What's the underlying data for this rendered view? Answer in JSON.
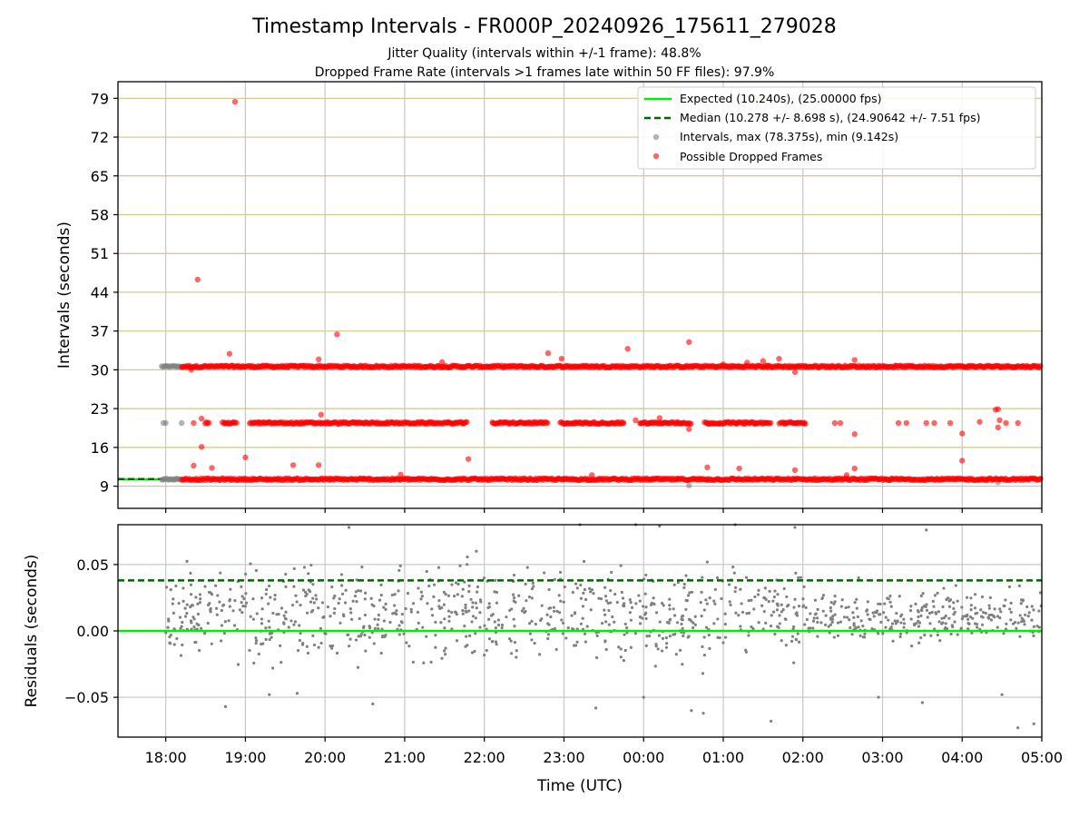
{
  "title": "Timestamp Intervals - FR000P_20240926_175611_279028",
  "subtitles": [
    "Jitter Quality (intervals within +/-1 frame): 48.8%",
    "Dropped Frame Rate (intervals >1 frames late within 50 FF files): 97.9%"
  ],
  "colors": {
    "expected": "#00ee00",
    "median": "#006400",
    "intervals": "#808080",
    "dropped": "#ff0000",
    "gridline_top": "#d4c58a",
    "gridline_vertical": "#c8c8c8"
  },
  "chart_data": [
    {
      "type": "scatter",
      "panel": "intervals",
      "xlabel": "Time (UTC)",
      "ylabel": "Intervals (seconds)",
      "xlim_hours": [
        17.4,
        29.0
      ],
      "ylim": [
        5,
        82
      ],
      "yticks": [
        9,
        16,
        23,
        30,
        37,
        44,
        51,
        58,
        65,
        72,
        79
      ],
      "ytick_labels": [
        "9",
        "16",
        "23",
        "30",
        "37",
        "44",
        "51",
        "58",
        "65",
        "72",
        "79"
      ],
      "grid": true,
      "legend_placement": "upper right",
      "legend": [
        "Expected (10.240s), (25.00000 fps)",
        "Median (10.278 +/- 8.698 s), (24.90642 +/- 7.51 fps)",
        "Intervals, max (78.375s), min (9.142s)",
        "Possible Dropped Frames"
      ],
      "series": [
        {
          "name": "Expected (10.240s), (25.00000 fps)",
          "kind": "hline",
          "value": 10.24,
          "xrange_hours": [
            17.4,
            18.0
          ]
        },
        {
          "name": "Median (10.278 +/- 8.698 s), (24.90642 +/- 7.51 fps)",
          "kind": "hline",
          "value": 10.278,
          "xrange_hours": [
            17.4,
            18.0
          ]
        },
        {
          "name": "Intervals, max (78.375s), min (9.142s)",
          "kind": "scatter",
          "bands": [
            {
              "y": 30.6,
              "x_start": 17.95,
              "x_end": 18.2
            },
            {
              "y": 10.24,
              "x_start": 17.95,
              "x_end": 18.2
            }
          ],
          "points": [
            [
              17.97,
              20.4
            ],
            [
              18.0,
              20.4
            ],
            [
              18.2,
              20.4
            ],
            [
              18.12,
              10.24
            ],
            [
              20.5,
              10.3
            ],
            [
              22.2,
              10.2
            ],
            [
              24.1,
              10.1
            ],
            [
              24.57,
              9.14
            ],
            [
              25.9,
              10.25
            ],
            [
              27.1,
              10.3
            ],
            [
              28.45,
              9.7
            ]
          ]
        },
        {
          "name": "Possible Dropped Frames",
          "kind": "scatter",
          "bands": [
            {
              "y": 30.6,
              "x_start": 18.2,
              "x_end": 29.0
            },
            {
              "y": 10.24,
              "x_start": 18.2,
              "x_end": 29.0
            },
            {
              "y": 20.4,
              "x_start": 18.5,
              "x_end": 26.05
            }
          ],
          "points": [
            [
              18.87,
              78.375
            ],
            [
              18.4,
              46.3
            ],
            [
              20.15,
              36.4
            ],
            [
              18.8,
              32.9
            ],
            [
              19.92,
              31.9
            ],
            [
              21.47,
              31.4
            ],
            [
              22.8,
              33.0
            ],
            [
              22.97,
              32.0
            ],
            [
              23.8,
              33.8
            ],
            [
              24.57,
              35.0
            ],
            [
              25.0,
              31.0
            ],
            [
              25.3,
              31.3
            ],
            [
              25.5,
              31.6
            ],
            [
              25.55,
              30.8
            ],
            [
              25.7,
              32.0
            ],
            [
              25.9,
              29.6
            ],
            [
              26.65,
              31.8
            ],
            [
              18.32,
              30.0
            ],
            [
              18.35,
              20.4
            ],
            [
              18.45,
              21.2
            ],
            [
              19.95,
              21.9
            ],
            [
              23.9,
              20.9
            ],
            [
              24.2,
              21.3
            ],
            [
              24.57,
              19.3
            ],
            [
              26.4,
              20.4
            ],
            [
              26.47,
              20.4
            ],
            [
              26.65,
              18.4
            ],
            [
              27.2,
              20.4
            ],
            [
              27.3,
              20.4
            ],
            [
              27.55,
              20.4
            ],
            [
              27.65,
              20.4
            ],
            [
              27.85,
              20.4
            ],
            [
              28.0,
              18.5
            ],
            [
              28.22,
              20.6
            ],
            [
              28.42,
              22.8
            ],
            [
              28.45,
              22.9
            ],
            [
              28.45,
              19.6
            ],
            [
              28.47,
              20.9
            ],
            [
              28.55,
              20.4
            ],
            [
              28.7,
              20.4
            ],
            [
              18.45,
              16.1
            ],
            [
              18.35,
              12.7
            ],
            [
              18.58,
              12.3
            ],
            [
              19.0,
              14.2
            ],
            [
              19.6,
              12.8
            ],
            [
              19.92,
              12.8
            ],
            [
              20.95,
              11.1
            ],
            [
              21.8,
              13.9
            ],
            [
              23.35,
              11.0
            ],
            [
              24.8,
              12.4
            ],
            [
              25.2,
              12.2
            ],
            [
              25.9,
              11.9
            ],
            [
              26.55,
              11.0
            ],
            [
              26.65,
              12.2
            ],
            [
              28.0,
              13.6
            ]
          ]
        }
      ]
    },
    {
      "type": "scatter",
      "panel": "residuals",
      "xlabel": "Time (UTC)",
      "ylabel": "Residuals (seconds)",
      "xlim_hours": [
        17.4,
        29.0
      ],
      "ylim": [
        -0.08,
        0.08
      ],
      "yticks": [
        -0.05,
        0.0,
        0.05
      ],
      "ytick_labels": [
        "−0.05",
        "0.00",
        "0.05"
      ],
      "xticks_hours": [
        18,
        19,
        20,
        21,
        22,
        23,
        24,
        25,
        26,
        27,
        28,
        29
      ],
      "xtick_labels": [
        "18:00",
        "19:00",
        "20:00",
        "21:00",
        "22:00",
        "23:00",
        "00:00",
        "01:00",
        "02:00",
        "03:00",
        "04:00",
        "05:00"
      ],
      "grid": true,
      "series": [
        {
          "name": "expected",
          "kind": "hline",
          "value": 0.0
        },
        {
          "name": "median",
          "kind": "hline",
          "value": 0.038
        },
        {
          "name": "residuals",
          "kind": "scatter",
          "n_points": 1100,
          "x_range_hours": [
            18.0,
            29.0
          ],
          "y_range": [
            -0.073,
            0.08
          ],
          "center": 0.012,
          "points": [
            [
              18.75,
              -0.057
            ],
            [
              19.3,
              -0.048
            ],
            [
              19.65,
              -0.047
            ],
            [
              20.6,
              -0.055
            ],
            [
              21.9,
              0.06
            ],
            [
              23.4,
              -0.058
            ],
            [
              24.6,
              -0.06
            ],
            [
              24.75,
              -0.062
            ],
            [
              25.6,
              -0.068
            ],
            [
              26.95,
              -0.05
            ],
            [
              27.5,
              -0.054
            ],
            [
              28.5,
              -0.048
            ],
            [
              28.7,
              -0.073
            ],
            [
              28.9,
              -0.07
            ],
            [
              20.3,
              0.078
            ],
            [
              23.2,
              0.08
            ],
            [
              23.9,
              0.08
            ],
            [
              24.2,
              0.079
            ],
            [
              25.15,
              0.08
            ],
            [
              25.9,
              0.078
            ],
            [
              27.55,
              0.076
            ],
            [
              24.0,
              -0.05
            ],
            [
              26.7,
              0.04
            ]
          ]
        }
      ]
    }
  ]
}
